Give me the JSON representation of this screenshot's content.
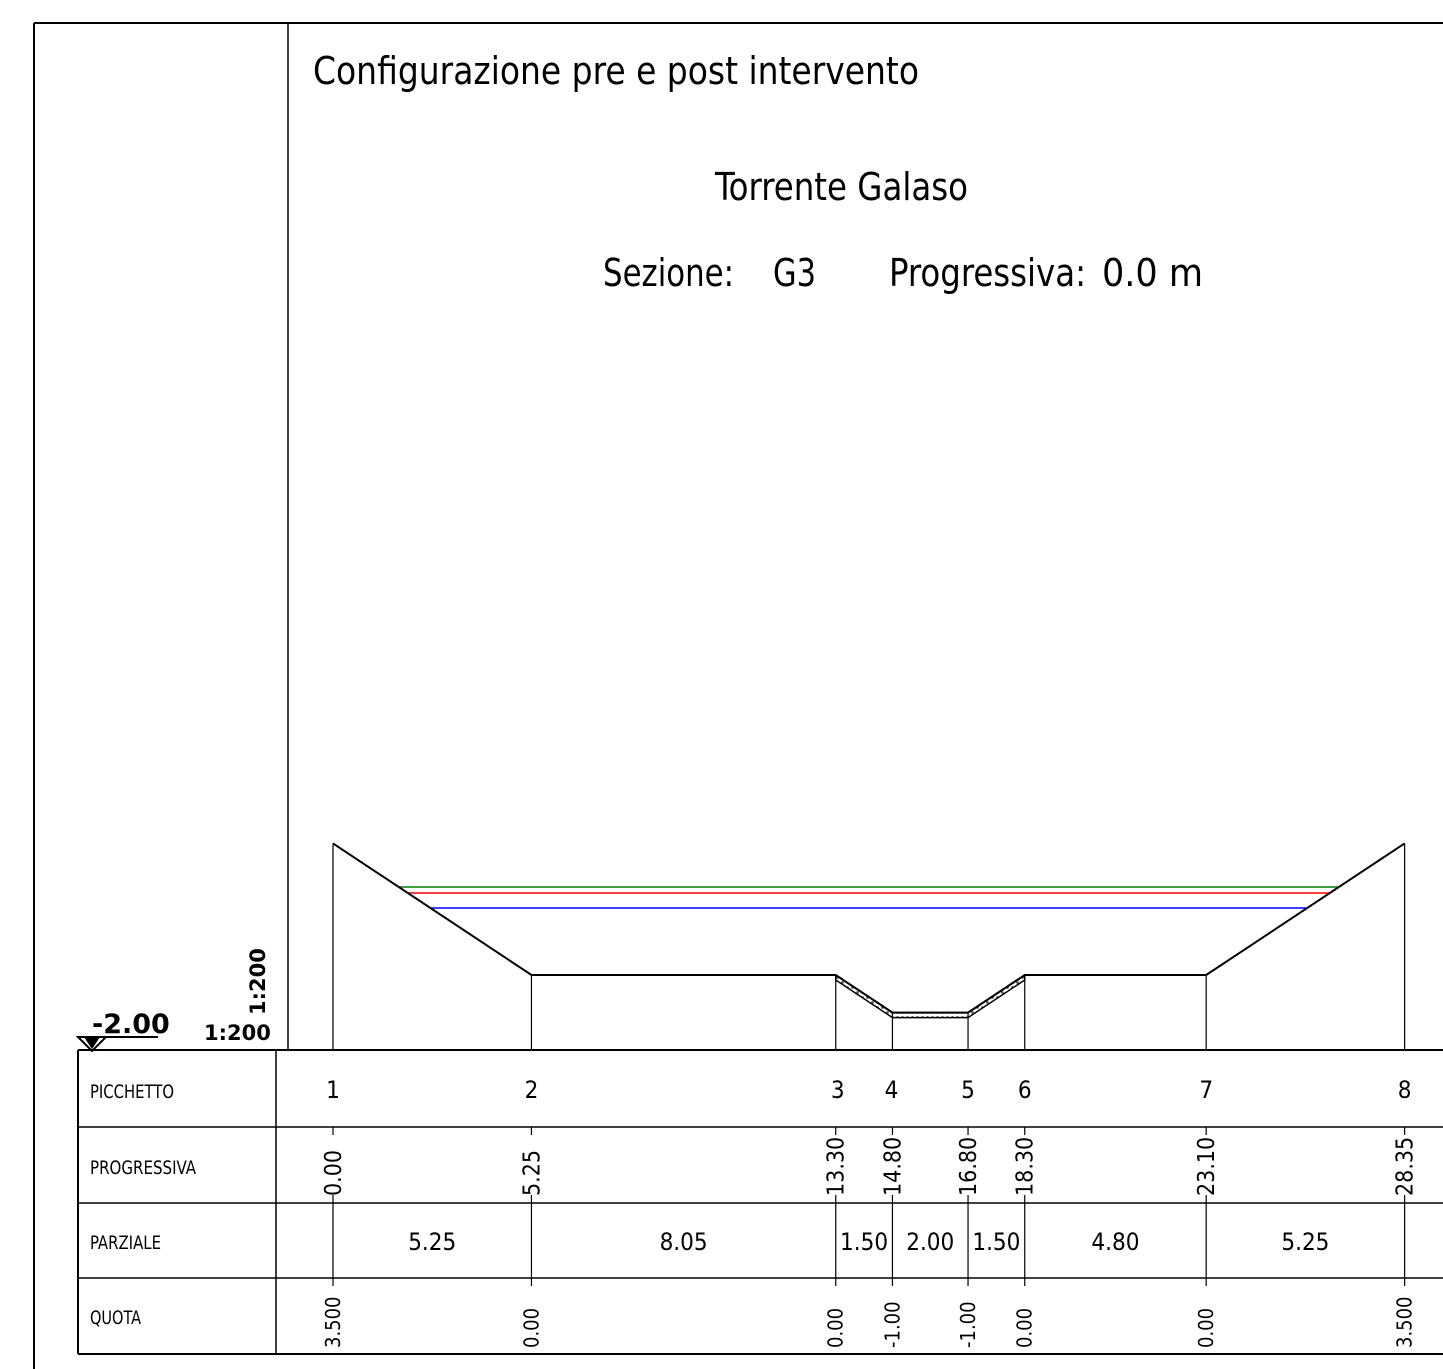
{
  "header": {
    "subject": "Configurazione pre e post intervento",
    "river": "Torrente Galaso",
    "section_label": "Sezione:",
    "section_value": "G3",
    "progressive_label": "Progressiva:",
    "progressive_value": "0.0 m"
  },
  "datum": {
    "elevation": "-2.00",
    "scale_horizontal": "1:200",
    "scale_vertical": "1:200"
  },
  "profile": {
    "colors": {
      "ground": "#000000",
      "water_green": "#008000",
      "water_red": "#ff0000",
      "water_blue": "#0000ff"
    },
    "stations": [
      {
        "picchetto": "1",
        "progressiva": 0.0,
        "quota": 3.5
      },
      {
        "picchetto": "2",
        "progressiva": 5.25,
        "quota": 0.0
      },
      {
        "picchetto": "3",
        "progressiva": 13.3,
        "quota": 0.0
      },
      {
        "picchetto": "4",
        "progressiva": 14.8,
        "quota": -1.0
      },
      {
        "picchetto": "5",
        "progressiva": 16.8,
        "quota": -1.0
      },
      {
        "picchetto": "6",
        "progressiva": 18.3,
        "quota": 0.0
      },
      {
        "picchetto": "7",
        "progressiva": 23.1,
        "quota": 0.0
      },
      {
        "picchetto": "8",
        "progressiva": 28.35,
        "quota": 3.5
      }
    ]
  },
  "table": {
    "rows": [
      {
        "key": "picchetto",
        "label": "PICCHETTO"
      },
      {
        "key": "progressiva",
        "label": "PROGRESSIVA"
      },
      {
        "key": "parziale",
        "label": "PARZIALE"
      },
      {
        "key": "quota",
        "label": "QUOTA"
      }
    ],
    "picchetto": [
      "1",
      "2",
      "3",
      "4",
      "5",
      "6",
      "7",
      "8"
    ],
    "progressiva": [
      "0.00",
      "5.25",
      "13.30",
      "14.80",
      "16.80",
      "18.30",
      "23.10",
      "28.35"
    ],
    "parziale": [
      "5.25",
      "8.05",
      "1.50",
      "2.00",
      "1.50",
      "4.80",
      "5.25"
    ],
    "quota": [
      "3.500",
      "0.00",
      "0.00",
      "-1.00",
      "-1.00",
      "0.00",
      "0.00",
      "3.500"
    ]
  }
}
